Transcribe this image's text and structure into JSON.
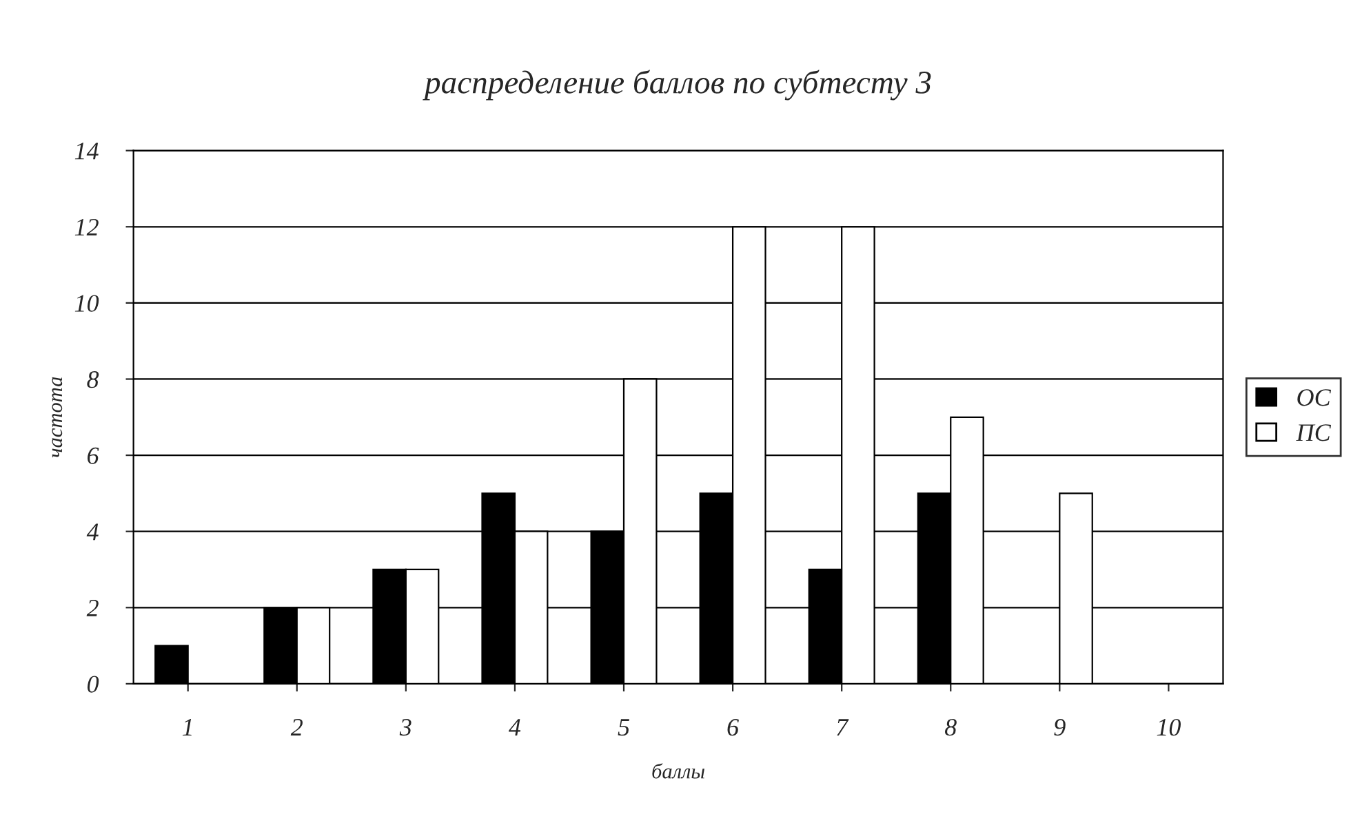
{
  "chart_data": {
    "type": "bar",
    "title": "распределение баллов по субтесту 3",
    "xlabel": "баллы",
    "ylabel": "частота",
    "categories": [
      "1",
      "2",
      "3",
      "4",
      "5",
      "6",
      "7",
      "8",
      "9",
      "10"
    ],
    "series": [
      {
        "name": "ОС",
        "color": "#000000",
        "values": [
          1,
          2,
          3,
          5,
          4,
          5,
          3,
          5,
          0,
          0
        ]
      },
      {
        "name": "ПС",
        "color": "#ffffff",
        "values": [
          0,
          2,
          3,
          4,
          8,
          12,
          12,
          7,
          5,
          0
        ]
      }
    ],
    "ylim": [
      0,
      14
    ],
    "yticks": [
      0,
      2,
      4,
      6,
      8,
      10,
      12,
      14
    ],
    "grid": "y",
    "legend": "right"
  }
}
